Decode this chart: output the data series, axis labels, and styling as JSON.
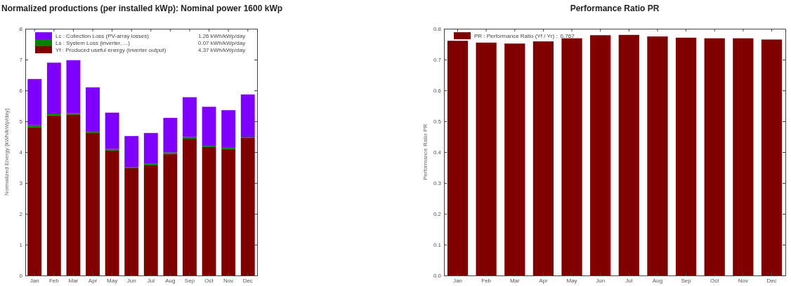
{
  "chart_data": [
    {
      "type": "bar",
      "stacked": true,
      "title": "Normalized productions (per installed kWp):  Nominal power 1600 kWp",
      "ylabel": "Normalized Energy  [kWh/kWp/day]",
      "categories": [
        "Jan",
        "Feb",
        "Mar",
        "Apr",
        "May",
        "Jun",
        "Jul",
        "Aug",
        "Sep",
        "Oct",
        "Nov",
        "Dec"
      ],
      "series": [
        {
          "name": "Yf : Produced useful energy  (inverter output)",
          "color": "#800000",
          "values": [
            4.81,
            5.19,
            5.22,
            4.63,
            4.05,
            3.48,
            3.57,
            3.94,
            4.43,
            4.16,
            4.1,
            4.47
          ]
        },
        {
          "name": "Ls : System Loss  (inverter, ...)",
          "color": "#008000",
          "values": [
            0.06,
            0.06,
            0.04,
            0.05,
            0.05,
            0.04,
            0.05,
            0.05,
            0.06,
            0.04,
            0.04,
            0.03
          ]
        },
        {
          "name": "Lc : Collection Loss (PV-array losses)",
          "color": "#7f00ff",
          "values": [
            1.5,
            1.65,
            1.72,
            1.42,
            1.18,
            1.0,
            1.0,
            1.12,
            1.29,
            1.27,
            1.22,
            1.37
          ]
        }
      ],
      "annotations": [
        "4.37 kWh/kWp/day",
        "0.07 kWh/kWp/day",
        "1.26 kWh/kWp/day"
      ],
      "ylim": [
        0,
        8
      ],
      "yticks": [
        0,
        1,
        2,
        3,
        4,
        5,
        6,
        7,
        8
      ],
      "legend": "top left"
    },
    {
      "type": "bar",
      "title": "Performance Ratio PR",
      "ylabel": "Performance Ratio PR",
      "categories": [
        "Jan",
        "Feb",
        "Mar",
        "Apr",
        "May",
        "Jun",
        "Jul",
        "Aug",
        "Sep",
        "Oct",
        "Nov",
        "Dec"
      ],
      "series": [
        {
          "name": "PR : Performance Ratio (Yf / Yr) :",
          "color": "#800000",
          "values": [
            0.761,
            0.755,
            0.752,
            0.759,
            0.769,
            0.779,
            0.78,
            0.775,
            0.771,
            0.769,
            0.769,
            0.765
          ]
        }
      ],
      "annotations": [
        "0.767"
      ],
      "ylim": [
        0,
        0.8
      ],
      "yticks": [
        {
          "value": 0,
          "label": "0.0"
        },
        {
          "value": 0.1,
          "label": "0.1"
        },
        {
          "value": 0.2,
          "label": "0.2"
        },
        {
          "value": 0.3,
          "label": "0.3"
        },
        {
          "value": 0.4,
          "label": "0.4"
        },
        {
          "value": 0.5,
          "label": "0.5"
        },
        {
          "value": 0.6,
          "label": "0.6"
        },
        {
          "value": 0.7,
          "label": "0.7"
        },
        {
          "value": 0.8,
          "label": "0.8"
        }
      ],
      "legend": "top left"
    }
  ]
}
